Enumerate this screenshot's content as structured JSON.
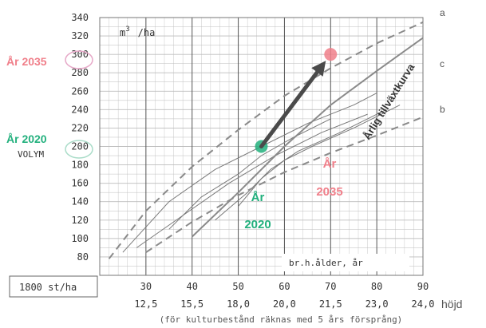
{
  "chart_data": {
    "type": "line",
    "unit_label_prefix": "m",
    "unit_label_sup": "3",
    "unit_label_suffix": "/ha",
    "y_axis": {
      "min": 60,
      "max": 340,
      "ticks": [
        80,
        100,
        120,
        140,
        160,
        180,
        200,
        220,
        240,
        260,
        280,
        300,
        320,
        340
      ]
    },
    "x_axis_age": {
      "ticks": [
        30,
        40,
        50,
        60,
        70,
        80,
        90
      ],
      "range": [
        20,
        90
      ]
    },
    "x_axis_height": [
      {
        "age": 30,
        "label": "12,5"
      },
      {
        "age": 40,
        "label": "15,5"
      },
      {
        "age": 50,
        "label": "18,0"
      },
      {
        "age": 60,
        "label": "20,0"
      },
      {
        "age": 70,
        "label": "21,5"
      },
      {
        "age": 80,
        "label": "23,0"
      },
      {
        "age": 90,
        "label": "24,0"
      }
    ],
    "height_word": "höjd",
    "age_caption": "br.h.ålder, år",
    "footnote": "(för kulturbestånd räknas med 5 års försprång)",
    "stems_box": "1800 st/ha",
    "series": [
      {
        "name": "a",
        "style": "dashed",
        "points": [
          [
            22,
            78
          ],
          [
            30,
            130
          ],
          [
            40,
            178
          ],
          [
            50,
            218
          ],
          [
            60,
            255
          ],
          [
            70,
            285
          ],
          [
            80,
            312
          ],
          [
            90,
            335
          ]
        ]
      },
      {
        "name": "b",
        "style": "dashed",
        "points": [
          [
            30,
            85
          ],
          [
            40,
            118
          ],
          [
            50,
            147
          ],
          [
            60,
            172
          ],
          [
            70,
            193
          ],
          [
            80,
            212
          ],
          [
            90,
            232
          ]
        ]
      },
      {
        "name": "c",
        "style": "solid",
        "points": [
          [
            40,
            102
          ],
          [
            50,
            150
          ],
          [
            60,
            200
          ],
          [
            70,
            245
          ],
          [
            80,
            282
          ],
          [
            90,
            318
          ]
        ]
      }
    ],
    "stand_lines": [
      [
        [
          25,
          85
        ],
        [
          35,
          140
        ],
        [
          45,
          175
        ],
        [
          55,
          200
        ],
        [
          65,
          225
        ],
        [
          75,
          245
        ],
        [
          80,
          258
        ]
      ],
      [
        [
          28,
          90
        ],
        [
          38,
          125
        ],
        [
          48,
          160
        ],
        [
          58,
          190
        ],
        [
          68,
          215
        ],
        [
          78,
          235
        ]
      ],
      [
        [
          35,
          110
        ],
        [
          42,
          145
        ],
        [
          50,
          170
        ],
        [
          55,
          190
        ],
        [
          62,
          210
        ],
        [
          70,
          230
        ]
      ],
      [
        [
          45,
          120
        ],
        [
          52,
          150
        ],
        [
          57,
          175
        ],
        [
          63,
          195
        ],
        [
          72,
          215
        ],
        [
          82,
          240
        ]
      ],
      [
        [
          50,
          135
        ],
        [
          55,
          165
        ],
        [
          60,
          185
        ],
        [
          66,
          200
        ],
        [
          75,
          220
        ],
        [
          85,
          245
        ]
      ]
    ],
    "annotations": {
      "point_2020": {
        "age": 55,
        "volume": 200,
        "color": "#22b07d"
      },
      "point_2035": {
        "age": 70,
        "volume": 300,
        "color": "#f07f8a"
      },
      "label_2035_left": "År 2035",
      "label_2020_left": "År 2020",
      "volym": "VOLYM",
      "ytick_300": "300",
      "ytick_200": "200",
      "label_2020_bottom_line1": "År",
      "label_2020_bottom_line2": "2020",
      "label_2035_bottom_line1": "År",
      "label_2035_bottom_line2": "2035",
      "tillvaxt": "Årlig tillväxtkurva"
    },
    "colors": {
      "grid": "#bdbdbd",
      "curve": "#8a8a8a",
      "text": "#333333",
      "green": "#22b07d",
      "pink": "#f07f8a",
      "arrow": "#4a4a4a"
    }
  }
}
